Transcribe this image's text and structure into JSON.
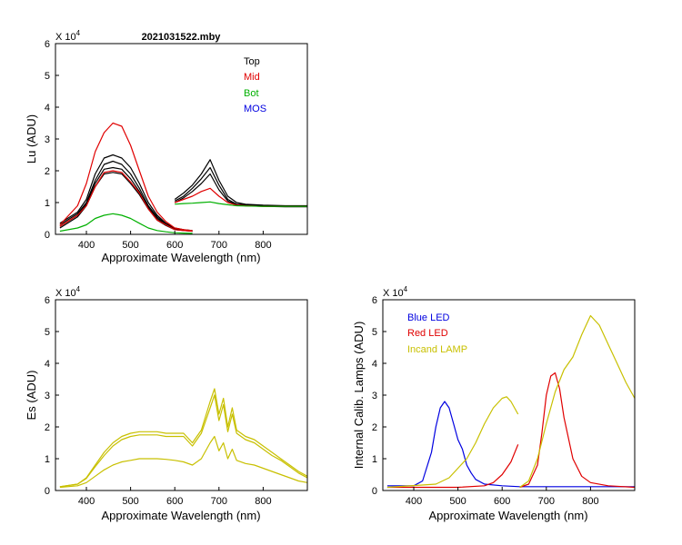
{
  "chart_data": [
    {
      "type": "line",
      "title": "2021031522.mby",
      "xlabel": "Approximate Wavelength (nm)",
      "ylabel": "Lu (ADU)",
      "multiplier_label": "X 10",
      "multiplier_exp": "4",
      "xlim": [
        330,
        900
      ],
      "ylim": [
        0,
        6
      ],
      "xticks": [
        "400",
        "500",
        "600",
        "700",
        "800"
      ],
      "yticks": [
        "0",
        "1",
        "2",
        "3",
        "4",
        "5",
        "6"
      ],
      "legend": [
        {
          "label": "Top",
          "color": "#000000"
        },
        {
          "label": "Mid",
          "color": "#e00000"
        },
        {
          "label": "Bot",
          "color": "#00b000"
        },
        {
          "label": "MOS",
          "color": "#0000e0"
        }
      ],
      "series": [
        {
          "name": "Top",
          "color": "#000000",
          "x": [
            340,
            380,
            400,
            420,
            440,
            460,
            480,
            500,
            520,
            540,
            560,
            580,
            600,
            620,
            640
          ],
          "values": [
            0.35,
            0.7,
            1.1,
            1.9,
            2.4,
            2.5,
            2.4,
            2.1,
            1.6,
            1.0,
            0.6,
            0.35,
            0.2,
            0.15,
            0.12
          ]
        },
        {
          "name": "Top",
          "color": "#000000",
          "x": [
            340,
            380,
            400,
            420,
            440,
            460,
            480,
            500,
            520,
            540,
            560,
            580,
            600,
            620,
            640
          ],
          "values": [
            0.3,
            0.65,
            1.0,
            1.7,
            2.2,
            2.3,
            2.2,
            1.9,
            1.45,
            0.9,
            0.55,
            0.32,
            0.18,
            0.14,
            0.1
          ]
        },
        {
          "name": "Top",
          "color": "#000000",
          "x": [
            340,
            380,
            400,
            420,
            440,
            460,
            480,
            500,
            520,
            540,
            560,
            580,
            600,
            620,
            640
          ],
          "values": [
            0.25,
            0.6,
            0.95,
            1.6,
            2.05,
            2.1,
            2.05,
            1.75,
            1.35,
            0.85,
            0.5,
            0.3,
            0.16,
            0.13,
            0.1
          ]
        },
        {
          "name": "Top",
          "color": "#000000",
          "x": [
            340,
            380,
            400,
            420,
            440,
            460,
            480,
            500,
            520,
            540,
            560,
            580,
            600,
            620,
            640
          ],
          "values": [
            0.2,
            0.55,
            0.9,
            1.5,
            1.9,
            1.95,
            1.9,
            1.6,
            1.25,
            0.8,
            0.45,
            0.28,
            0.15,
            0.12,
            0.1
          ]
        },
        {
          "name": "Top",
          "color": "#000000",
          "x": [
            600,
            620,
            640,
            660,
            680,
            700,
            720,
            740,
            760,
            800,
            850,
            900
          ],
          "values": [
            1.1,
            1.3,
            1.55,
            1.9,
            2.35,
            1.7,
            1.2,
            1.0,
            0.95,
            0.92,
            0.9,
            0.9
          ]
        },
        {
          "name": "Top",
          "color": "#000000",
          "x": [
            600,
            620,
            640,
            660,
            680,
            700,
            720,
            740,
            760,
            800,
            850,
            900
          ],
          "values": [
            1.05,
            1.2,
            1.45,
            1.75,
            2.1,
            1.55,
            1.1,
            0.95,
            0.93,
            0.9,
            0.88,
            0.88
          ]
        },
        {
          "name": "Top",
          "color": "#000000",
          "x": [
            600,
            620,
            640,
            660,
            680,
            700,
            720,
            740,
            760,
            800,
            850,
            900
          ],
          "values": [
            1.0,
            1.15,
            1.35,
            1.6,
            1.9,
            1.4,
            1.05,
            0.93,
            0.9,
            0.88,
            0.87,
            0.87
          ]
        },
        {
          "name": "Mid",
          "color": "#e00000",
          "x": [
            340,
            380,
            400,
            420,
            440,
            460,
            480,
            500,
            520,
            540,
            560,
            580,
            600,
            620,
            640
          ],
          "values": [
            0.3,
            0.9,
            1.6,
            2.6,
            3.2,
            3.5,
            3.4,
            2.8,
            2.0,
            1.2,
            0.7,
            0.4,
            0.2,
            0.15,
            0.12
          ]
        },
        {
          "name": "Mid",
          "color": "#e00000",
          "x": [
            340,
            380,
            400,
            420,
            440,
            460,
            480,
            500,
            520,
            540,
            560,
            580,
            600,
            620,
            640
          ],
          "values": [
            0.25,
            0.6,
            0.9,
            1.5,
            1.95,
            2.0,
            1.95,
            1.65,
            1.3,
            0.8,
            0.45,
            0.3,
            0.15,
            0.12,
            0.1
          ]
        },
        {
          "name": "Mid",
          "color": "#e00000",
          "x": [
            600,
            620,
            640,
            660,
            680,
            700,
            720,
            740,
            760,
            800,
            850,
            900
          ],
          "values": [
            1.0,
            1.1,
            1.2,
            1.35,
            1.45,
            1.2,
            1.0,
            0.92,
            0.9,
            0.88,
            0.88,
            0.88
          ]
        },
        {
          "name": "Bot",
          "color": "#00b000",
          "x": [
            340,
            380,
            400,
            420,
            440,
            460,
            480,
            500,
            520,
            540,
            560,
            580,
            600,
            620,
            640
          ],
          "values": [
            0.1,
            0.2,
            0.3,
            0.5,
            0.6,
            0.65,
            0.6,
            0.5,
            0.35,
            0.2,
            0.12,
            0.08,
            0.05,
            0.04,
            0.03
          ]
        },
        {
          "name": "Bot",
          "color": "#00b000",
          "x": [
            600,
            620,
            640,
            660,
            680,
            700,
            720,
            740,
            760,
            800,
            850,
            900
          ],
          "values": [
            0.95,
            0.97,
            0.98,
            1.0,
            1.02,
            0.97,
            0.93,
            0.9,
            0.89,
            0.88,
            0.88,
            0.88
          ]
        }
      ]
    },
    {
      "type": "line",
      "title": "",
      "xlabel": "Approximate Wavelength (nm)",
      "ylabel": "Es  (ADU)",
      "multiplier_label": "X 10",
      "multiplier_exp": "4",
      "xlim": [
        330,
        900
      ],
      "ylim": [
        0,
        6
      ],
      "xticks": [
        "400",
        "500",
        "600",
        "700",
        "800"
      ],
      "yticks": [
        "0",
        "1",
        "2",
        "3",
        "4",
        "5",
        "6"
      ],
      "series": [
        {
          "name": "Es",
          "color": "#c8c000",
          "x": [
            340,
            380,
            400,
            420,
            440,
            460,
            480,
            500,
            520,
            540,
            560,
            580,
            600,
            620,
            640,
            660,
            680,
            690,
            700,
            710,
            720,
            730,
            740,
            760,
            780,
            800,
            820,
            840,
            860,
            880,
            900
          ],
          "values": [
            0.12,
            0.2,
            0.4,
            0.8,
            1.2,
            1.5,
            1.7,
            1.8,
            1.85,
            1.85,
            1.85,
            1.8,
            1.8,
            1.8,
            1.5,
            1.9,
            2.8,
            3.2,
            2.4,
            2.9,
            2.0,
            2.6,
            1.9,
            1.7,
            1.6,
            1.4,
            1.2,
            1.0,
            0.8,
            0.6,
            0.45
          ]
        },
        {
          "name": "Es",
          "color": "#c8c000",
          "x": [
            340,
            380,
            400,
            420,
            440,
            460,
            480,
            500,
            520,
            540,
            560,
            580,
            600,
            620,
            640,
            660,
            680,
            690,
            700,
            710,
            720,
            730,
            740,
            760,
            780,
            800,
            820,
            840,
            860,
            880,
            900
          ],
          "values": [
            0.12,
            0.2,
            0.38,
            0.75,
            1.1,
            1.4,
            1.6,
            1.7,
            1.75,
            1.75,
            1.75,
            1.7,
            1.7,
            1.7,
            1.4,
            1.8,
            2.6,
            3.0,
            2.2,
            2.7,
            1.85,
            2.4,
            1.8,
            1.6,
            1.5,
            1.3,
            1.1,
            0.95,
            0.75,
            0.55,
            0.4
          ]
        },
        {
          "name": "Es",
          "color": "#c8c000",
          "x": [
            340,
            380,
            400,
            420,
            440,
            460,
            480,
            500,
            520,
            540,
            560,
            580,
            600,
            620,
            640,
            660,
            680,
            690,
            700,
            710,
            720,
            730,
            740,
            760,
            780,
            800,
            820,
            840,
            860,
            880,
            900
          ],
          "values": [
            0.1,
            0.15,
            0.25,
            0.45,
            0.65,
            0.8,
            0.9,
            0.95,
            1.0,
            1.0,
            1.0,
            0.98,
            0.95,
            0.9,
            0.8,
            1.0,
            1.5,
            1.7,
            1.25,
            1.5,
            1.0,
            1.3,
            0.95,
            0.85,
            0.8,
            0.7,
            0.6,
            0.5,
            0.4,
            0.3,
            0.25
          ]
        }
      ]
    },
    {
      "type": "line",
      "title": "",
      "xlabel": "Approximate Wavelength (nm)",
      "ylabel": "Internal Calib. Lamps  (ADU)",
      "multiplier_label": "X 10",
      "multiplier_exp": "4",
      "xlim": [
        330,
        900
      ],
      "ylim": [
        0,
        6
      ],
      "xticks": [
        "400",
        "500",
        "600",
        "700",
        "800"
      ],
      "yticks": [
        "0",
        "1",
        "2",
        "3",
        "4",
        "5",
        "6"
      ],
      "legend": [
        {
          "label": "Blue LED",
          "color": "#0000e0"
        },
        {
          "label": "Red LED",
          "color": "#e00000"
        },
        {
          "label": "Incand LAMP",
          "color": "#c8c000"
        }
      ],
      "series": [
        {
          "name": "Blue LED",
          "color": "#0000e0",
          "x": [
            340,
            400,
            420,
            440,
            450,
            460,
            470,
            480,
            490,
            500,
            510,
            520,
            530,
            540,
            560,
            600,
            640,
            700,
            800,
            900
          ],
          "values": [
            0.15,
            0.15,
            0.3,
            1.2,
            2.0,
            2.6,
            2.8,
            2.6,
            2.1,
            1.6,
            1.3,
            0.8,
            0.55,
            0.35,
            0.2,
            0.15,
            0.12,
            0.12,
            0.12,
            0.12
          ]
        },
        {
          "name": "Red LED",
          "color": "#e00000",
          "x": [
            340,
            500,
            560,
            580,
            600,
            620,
            636
          ],
          "values": [
            0.1,
            0.1,
            0.15,
            0.25,
            0.5,
            0.9,
            1.45
          ]
        },
        {
          "name": "Red LED",
          "color": "#e00000",
          "x": [
            640,
            660,
            680,
            690,
            700,
            710,
            720,
            730,
            740,
            760,
            780,
            800,
            840,
            900
          ],
          "values": [
            0.1,
            0.2,
            0.8,
            1.8,
            3.0,
            3.6,
            3.7,
            3.2,
            2.3,
            1.0,
            0.45,
            0.25,
            0.15,
            0.1
          ]
        },
        {
          "name": "Incand LAMP",
          "color": "#c8c000",
          "x": [
            340,
            450,
            480,
            500,
            520,
            540,
            560,
            580,
            600,
            610,
            620,
            636
          ],
          "values": [
            0.1,
            0.2,
            0.4,
            0.7,
            1.0,
            1.5,
            2.1,
            2.6,
            2.9,
            2.95,
            2.8,
            2.4
          ]
        },
        {
          "name": "Incand LAMP",
          "color": "#c8c000",
          "x": [
            640,
            660,
            680,
            700,
            720,
            740,
            760,
            780,
            800,
            820,
            840,
            860,
            880,
            900
          ],
          "values": [
            0.1,
            0.3,
            1.0,
            2.1,
            3.1,
            3.8,
            4.2,
            4.9,
            5.5,
            5.2,
            4.6,
            4.0,
            3.4,
            2.9
          ]
        }
      ]
    }
  ]
}
